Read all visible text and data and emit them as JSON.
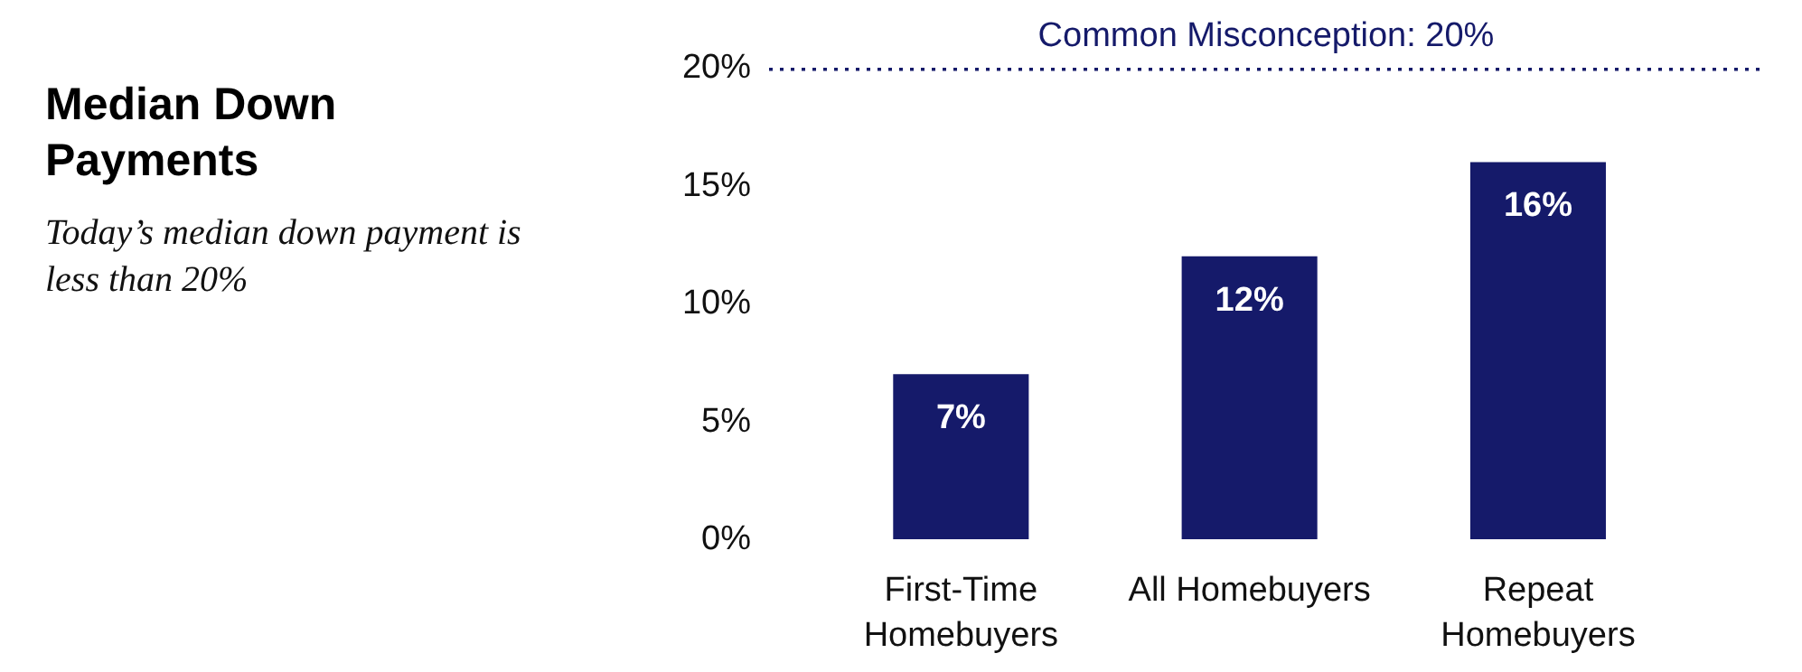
{
  "chart_data": {
    "type": "bar",
    "title": "Median Down Payments",
    "subtitle": "Today’s median down payment is less than 20%",
    "categories": [
      "First-Time Homebuyers",
      "All Homebuyers",
      "Repeat Homebuyers"
    ],
    "values": [
      7,
      12,
      16
    ],
    "color": "#151a6a",
    "value_labels": [
      "7%",
      "12%",
      "16%"
    ],
    "ylim": [
      0,
      20
    ],
    "yticks": [
      {
        "value": 0,
        "label": "0%"
      },
      {
        "value": 5,
        "label": "5%"
      },
      {
        "value": 10,
        "label": "10%"
      },
      {
        "value": 15,
        "label": "15%"
      },
      {
        "value": 20,
        "label": "20%"
      }
    ],
    "ref_lines": [
      {
        "axis": "y",
        "value": 20,
        "label": "Common Misconception: 20%",
        "color": "#151a6a",
        "line_style": "dotted"
      }
    ],
    "grid": false
  }
}
